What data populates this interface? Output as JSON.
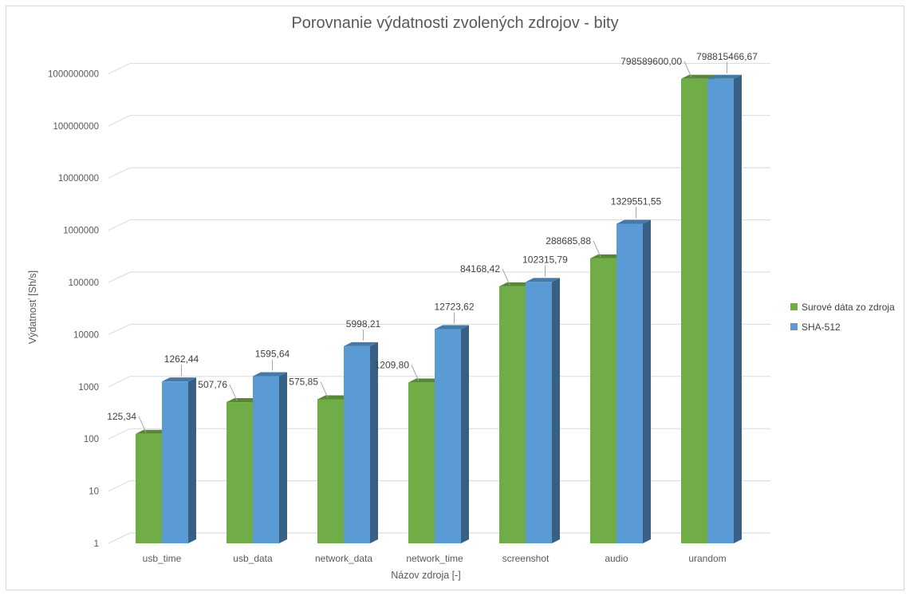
{
  "chart_data": {
    "type": "bar",
    "title": "Porovnanie výdatnosti zvolených zdrojov - bity",
    "xlabel": "Názov zdroja [-]",
    "ylabel": "Výdatnosť [Sh/s]",
    "yscale": "log",
    "ylim": [
      1,
      1000000000
    ],
    "yticks": [
      "1",
      "10",
      "100",
      "1000",
      "10000",
      "100000",
      "1000000",
      "10000000",
      "100000000",
      "1000000000"
    ],
    "categories": [
      "usb_time",
      "usb_data",
      "network_data",
      "network_time",
      "screenshot",
      "audio",
      "urandom"
    ],
    "series": [
      {
        "name": "Surové dáta zo zdroja",
        "color": "#70ad47",
        "values": [
          125.34,
          507.76,
          575.85,
          1209.8,
          84168.42,
          288685.88,
          798589600.0
        ],
        "labels": [
          "125,34",
          "507,76",
          "575,85",
          "1209,80",
          "84168,42",
          "288685,88",
          "798589600,00"
        ]
      },
      {
        "name": "SHA-512",
        "color": "#5b9bd5",
        "values": [
          1262.44,
          1595.64,
          5998.21,
          12723.62,
          102315.79,
          1329551.55,
          798815466.67
        ],
        "labels": [
          "1262,44",
          "1595,64",
          "5998,21",
          "12723,62",
          "102315,79",
          "1329551,55",
          "798815466,67"
        ]
      }
    ],
    "grid": true,
    "legend_position": "right"
  }
}
